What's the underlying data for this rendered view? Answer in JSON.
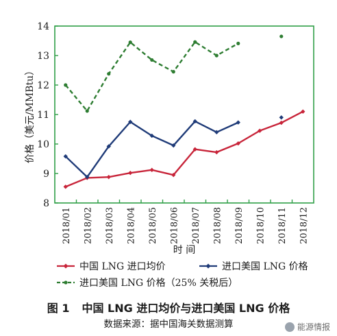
{
  "chart_data": {
    "type": "line",
    "ylabel": "价格（美元/MMBtu）",
    "xlabel": "时 间",
    "ylim": [
      8,
      14
    ],
    "yticks": [
      "8",
      "9",
      "10",
      "11",
      "12",
      "13",
      "14"
    ],
    "grid": false,
    "legend_position": "bottom",
    "categories": [
      "2018/01",
      "2018/02",
      "2018/03",
      "2018/04",
      "2018/05",
      "2018/06",
      "2018/07",
      "2018/08",
      "2018/09",
      "2018/10",
      "2018/11",
      "2018/12"
    ],
    "series": [
      {
        "name": "中国 LNG 进口均价",
        "color": "#c8253a",
        "dash": "solid",
        "marker": "diamond",
        "values": [
          8.55,
          8.85,
          8.88,
          9.02,
          9.12,
          8.95,
          9.82,
          9.72,
          10.02,
          10.45,
          10.72,
          11.1
        ]
      },
      {
        "name": "进口美国 LNG 价格",
        "color": "#1f3b78",
        "dash": "solid",
        "marker": "diamond",
        "values": [
          9.58,
          8.88,
          9.92,
          10.75,
          10.28,
          9.95,
          10.77,
          10.4,
          10.73,
          null,
          10.9,
          null
        ]
      },
      {
        "name": "进口美国 LNG 价格（25% 关税后）",
        "color": "#2e7d32",
        "dash": "dashed",
        "marker": "dot",
        "values": [
          12.0,
          11.12,
          12.38,
          13.45,
          12.85,
          12.45,
          13.46,
          13.0,
          13.41,
          null,
          13.65,
          null
        ]
      }
    ],
    "colors": {
      "axis": "#2e9e46",
      "text": "#1a1a1a"
    }
  },
  "figure": {
    "number": "图 1",
    "title": "中国 LNG 进口均价与进口美国 LNG 价格",
    "source": "数据来源：据中国海关数据测算",
    "watermark": "能源情报"
  }
}
